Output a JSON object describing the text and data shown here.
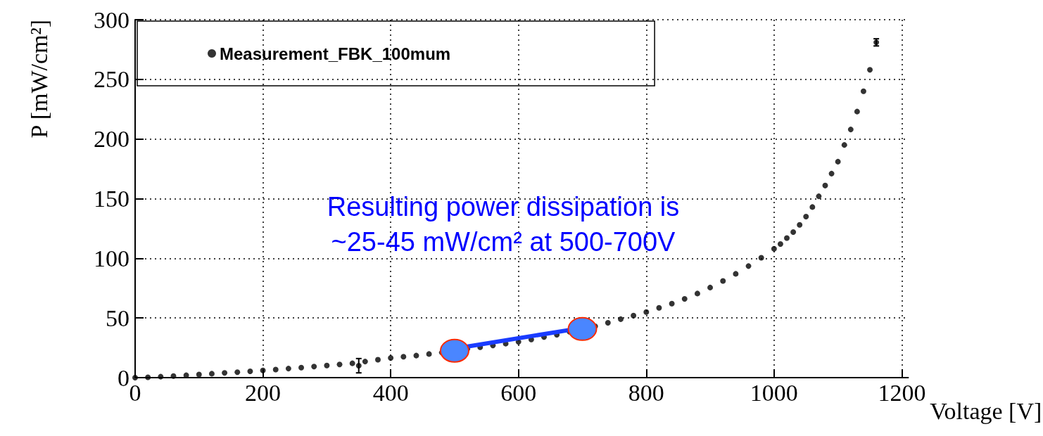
{
  "chart_data": {
    "type": "scatter",
    "xlabel": "Voltage [V]",
    "ylabel": "P [mW/cm²]",
    "xlim": [
      0,
      1210
    ],
    "xticks": [
      0,
      200,
      400,
      600,
      800,
      1000,
      1200
    ],
    "ylim": [
      0,
      300
    ],
    "yticks": [
      0,
      50,
      100,
      150,
      200,
      250,
      300
    ],
    "grid": true,
    "legend": "top left",
    "marker": "circle",
    "annotations": [
      "Resulting power dissipation is",
      "~25-45 mW/cm² at 500-700V"
    ],
    "series": [
      {
        "name": "Measurement_FBK_100mum",
        "color": "#000000",
        "x": [
          0,
          20,
          40,
          60,
          80,
          100,
          120,
          140,
          160,
          180,
          200,
          220,
          240,
          260,
          280,
          300,
          320,
          340,
          350,
          360,
          380,
          400,
          420,
          440,
          460,
          480,
          500,
          520,
          540,
          560,
          580,
          600,
          620,
          640,
          660,
          680,
          700,
          720,
          740,
          760,
          780,
          800,
          820,
          840,
          860,
          880,
          900,
          920,
          940,
          960,
          980,
          1000,
          1010,
          1020,
          1030,
          1040,
          1050,
          1060,
          1070,
          1080,
          1090,
          1100,
          1110,
          1120,
          1130,
          1140,
          1150,
          1160
        ],
        "values": [
          0,
          0.3,
          0.8,
          1.3,
          2,
          2.6,
          3.3,
          4,
          4.6,
          5.3,
          6,
          6.8,
          7.6,
          8.4,
          9.3,
          10.2,
          11.1,
          12,
          10,
          13.5,
          15,
          16.5,
          17.5,
          18.5,
          19.8,
          21,
          null,
          24,
          25.5,
          27,
          28.5,
          30,
          32,
          34,
          36,
          38.5,
          null,
          43,
          46,
          49,
          52,
          55,
          58.5,
          62,
          66,
          70.5,
          75.5,
          81,
          87,
          93.5,
          100.5,
          108,
          112,
          117,
          122,
          128,
          135,
          143,
          152,
          161,
          171,
          181,
          195,
          208,
          223,
          240,
          258,
          281
        ],
        "errors": [
          null,
          null,
          null,
          null,
          null,
          null,
          null,
          null,
          null,
          null,
          null,
          null,
          null,
          null,
          null,
          null,
          null,
          null,
          6,
          null,
          null,
          null,
          null,
          null,
          null,
          null,
          null,
          null,
          null,
          null,
          null,
          null,
          null,
          null,
          null,
          null,
          null,
          null,
          null,
          null,
          null,
          null,
          null,
          null,
          null,
          null,
          null,
          null,
          null,
          null,
          null,
          null,
          null,
          null,
          null,
          null,
          null,
          null,
          null,
          null,
          null,
          null,
          null,
          null,
          null,
          null,
          null,
          3
        ]
      }
    ]
  }
}
